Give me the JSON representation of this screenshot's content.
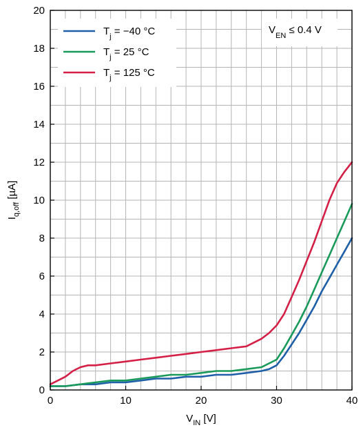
{
  "chart_data": {
    "type": "line",
    "xlabel": {
      "main": "V",
      "sub": "IN",
      "unit": " [V]"
    },
    "ylabel": {
      "main": "I",
      "sub": "q,off",
      "unit": " [µA]"
    },
    "xlim": [
      0,
      40
    ],
    "ylim": [
      0,
      20
    ],
    "x_ticks": [
      "0",
      "10",
      "20",
      "30",
      "40"
    ],
    "y_ticks": [
      "0",
      "2",
      "4",
      "6",
      "8",
      "10",
      "12",
      "14",
      "16",
      "18",
      "20"
    ],
    "grid": true,
    "legend_position": "top-left",
    "annotation": {
      "main": "V",
      "sub": "EN",
      "rest": " ≤ 0.4 V"
    },
    "series": [
      {
        "name": "Tj = −40 °C",
        "legend": {
          "main": "T",
          "sub": "j",
          "rest": " = −40 °C"
        },
        "color": "#1f5fa8",
        "x": [
          0,
          2,
          4,
          6,
          8,
          10,
          12,
          14,
          16,
          18,
          20,
          22,
          24,
          26,
          28,
          29,
          30,
          31,
          32,
          33,
          34,
          35,
          36,
          37,
          38,
          39,
          40
        ],
        "y": [
          0.2,
          0.2,
          0.3,
          0.3,
          0.4,
          0.4,
          0.5,
          0.6,
          0.6,
          0.7,
          0.7,
          0.8,
          0.8,
          0.9,
          1.0,
          1.1,
          1.3,
          1.8,
          2.4,
          3.0,
          3.7,
          4.4,
          5.2,
          5.9,
          6.6,
          7.3,
          8.0
        ]
      },
      {
        "name": "Tj = 25 °C",
        "legend": {
          "main": "T",
          "sub": "j",
          "rest": " = 25 °C"
        },
        "color": "#1a9a5a",
        "x": [
          0,
          2,
          4,
          6,
          8,
          10,
          12,
          14,
          16,
          18,
          20,
          22,
          24,
          26,
          28,
          29,
          30,
          31,
          32,
          33,
          34,
          35,
          36,
          37,
          38,
          39,
          40
        ],
        "y": [
          0.2,
          0.2,
          0.3,
          0.4,
          0.5,
          0.5,
          0.6,
          0.7,
          0.8,
          0.8,
          0.9,
          1.0,
          1.0,
          1.1,
          1.2,
          1.4,
          1.6,
          2.2,
          2.9,
          3.6,
          4.4,
          5.3,
          6.2,
          7.1,
          8.0,
          8.9,
          9.8
        ]
      },
      {
        "name": "Tj = 125 °C",
        "legend": {
          "main": "T",
          "sub": "j",
          "rest": " = 125 °C"
        },
        "color": "#d41f47",
        "x": [
          0,
          1,
          2,
          3,
          4,
          5,
          6,
          8,
          10,
          12,
          14,
          16,
          18,
          20,
          22,
          24,
          26,
          28,
          29,
          30,
          31,
          32,
          33,
          34,
          35,
          36,
          37,
          38,
          39,
          40
        ],
        "y": [
          0.3,
          0.5,
          0.7,
          1.0,
          1.2,
          1.3,
          1.3,
          1.4,
          1.5,
          1.6,
          1.7,
          1.8,
          1.9,
          2.0,
          2.1,
          2.2,
          2.3,
          2.7,
          3.0,
          3.4,
          4.0,
          4.9,
          5.8,
          6.8,
          7.8,
          8.9,
          10.0,
          10.9,
          11.5,
          12.0
        ]
      }
    ]
  }
}
